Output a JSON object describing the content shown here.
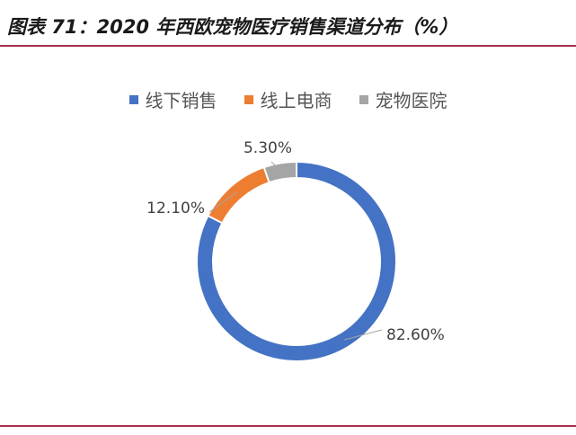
{
  "title": "图表 71：2020 年西欧宠物医疗销售渠道分布（%）",
  "chart_data": {
    "type": "pie",
    "subtype": "donut",
    "title": "图表 71：2020 年西欧宠物医疗销售渠道分布（%）",
    "legend_position": "top",
    "series": [
      {
        "name": "线下销售",
        "value": 82.6,
        "label": "82.60%",
        "color": "#4472c4"
      },
      {
        "name": "线上电商",
        "value": 12.1,
        "label": "12.10%",
        "color": "#ed7d31"
      },
      {
        "name": "宠物医院",
        "value": 5.3,
        "label": "5.30%",
        "color": "#a5a5a5"
      }
    ]
  }
}
